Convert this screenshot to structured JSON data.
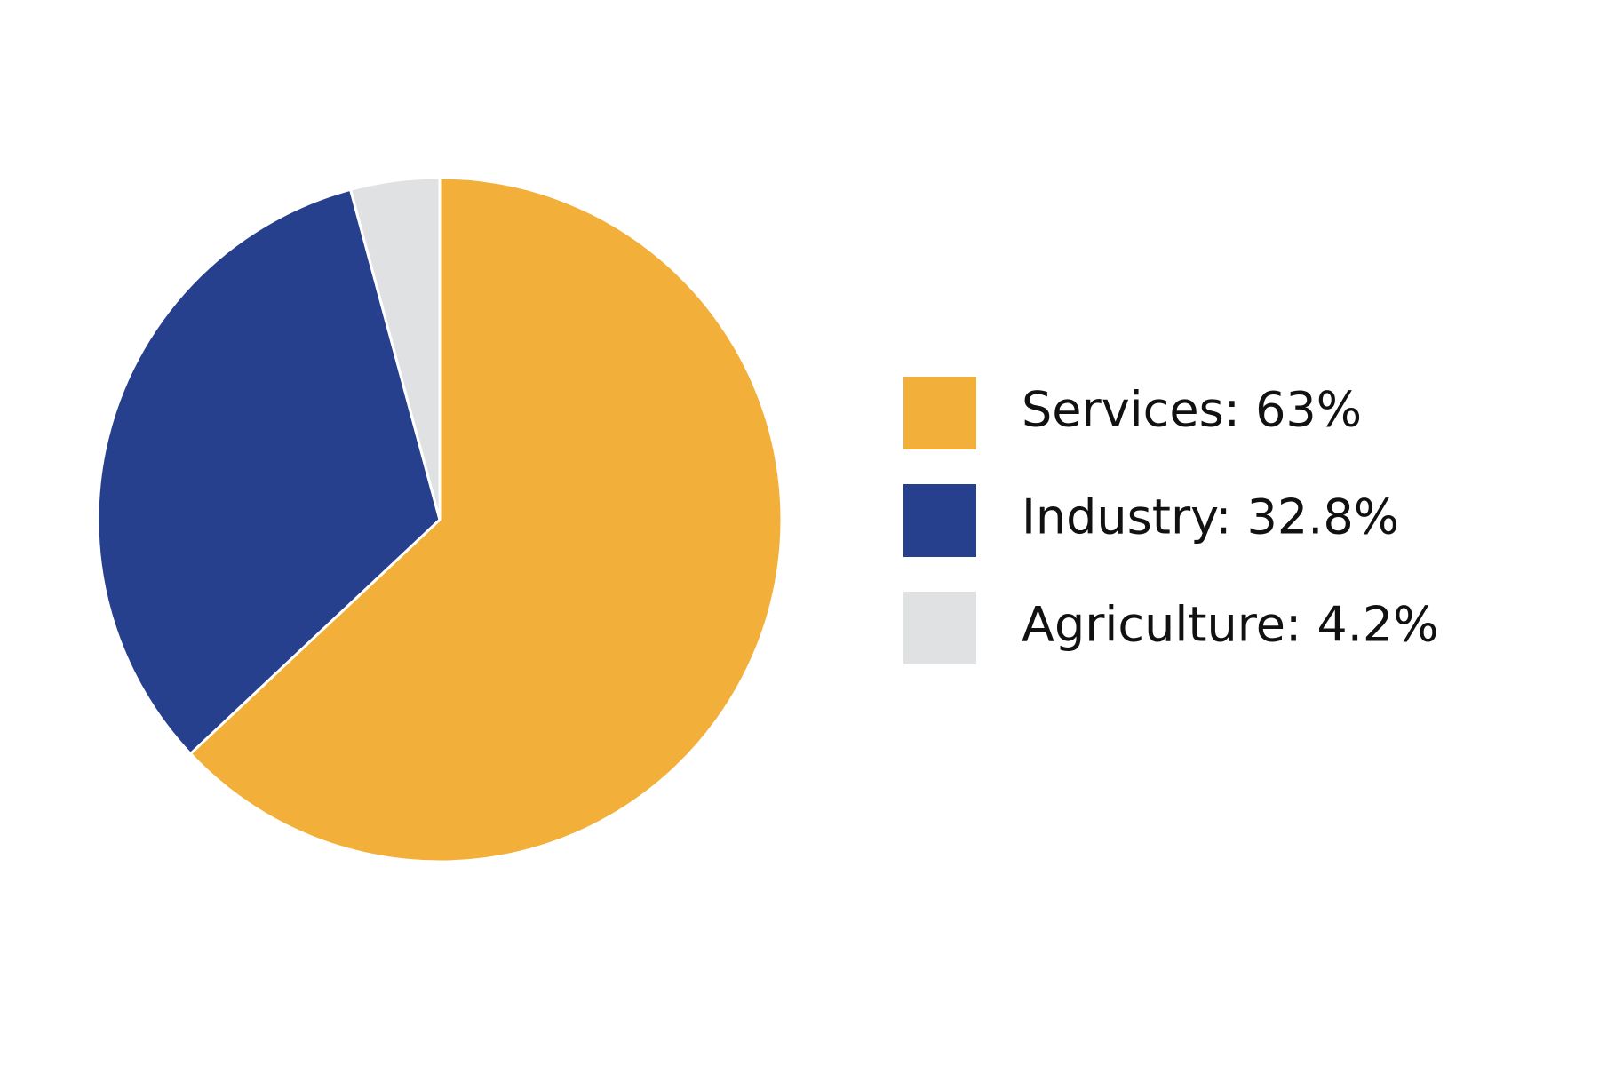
{
  "chart_data": {
    "type": "pie",
    "values": [
      63,
      32.8,
      4.2
    ],
    "value_labels": [
      "Services: 63%",
      "Industry: 32.8%",
      "Agriculture: 4.2%"
    ],
    "colors": [
      "#f2b03a",
      "#27408d",
      "#e0e1e3"
    ]
  }
}
